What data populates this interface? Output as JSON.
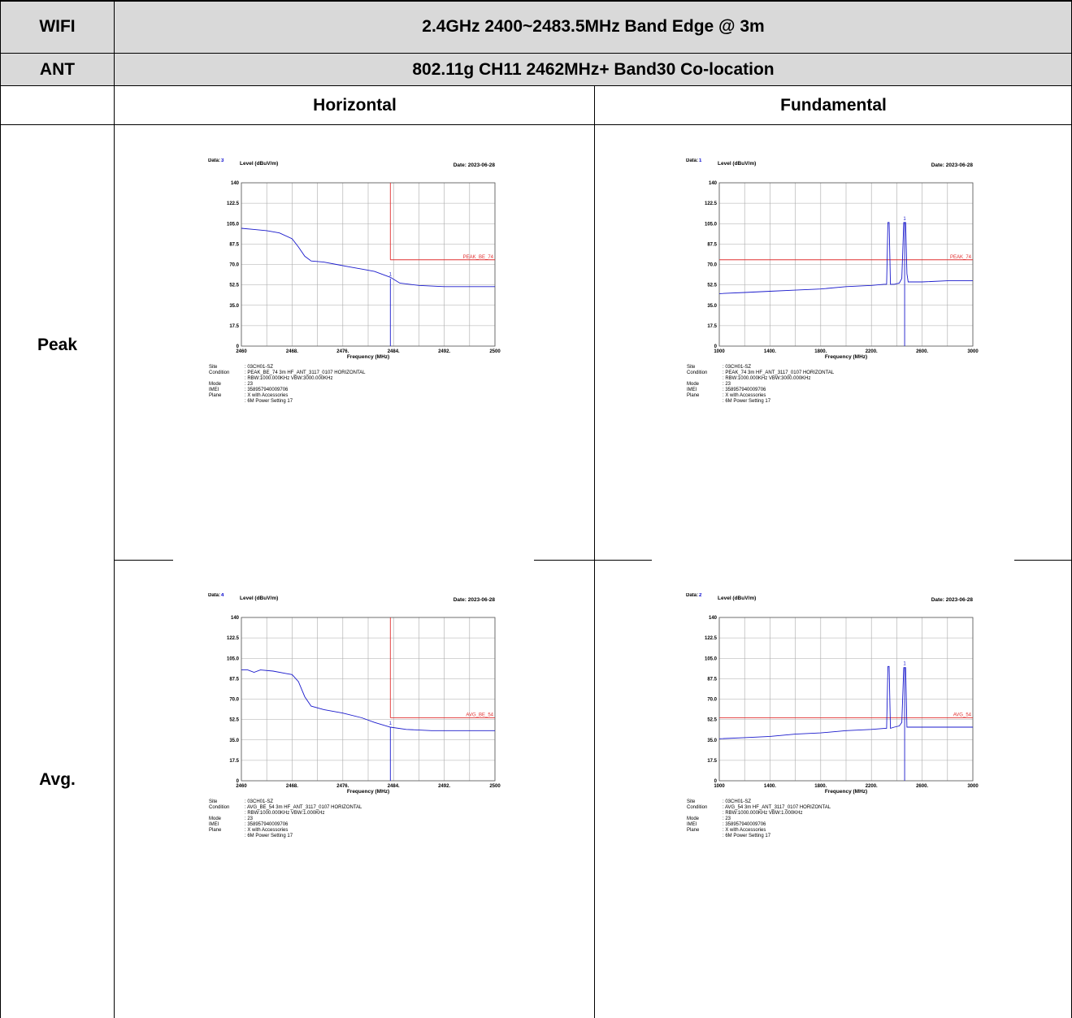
{
  "header": {
    "row1_label": "WIFI",
    "row1_value": "2.4GHz 2400~2483.5MHz Band Edge @ 3m",
    "row2_label": "ANT",
    "row2_value": "802.11g CH11 2462MHz+ Band30 Co-location",
    "col_left": "Horizontal",
    "col_right": "Fundamental"
  },
  "rows": {
    "peak": "Peak",
    "avg": "Avg."
  },
  "meta_labels": [
    "Site",
    "Condition",
    "",
    "Mode",
    "IMEI",
    "Plane",
    ""
  ],
  "plots": {
    "peak_h": {
      "data_label": "Data:",
      "data_num": "3",
      "date": "Date: 2023-06-28",
      "meta_values": [
        ": 03CH01-SZ",
        ": PEAK_BE_74 3m HF_ANT_3117_0107 HORIZONTAL",
        ": RBW:1000.000KHz VBW:3000.000KHz",
        ": 23",
        ": 358957940009706",
        ": X with Accessories",
        ": 6M Power Setting 17"
      ]
    },
    "peak_f": {
      "data_label": "Data:",
      "data_num": "1",
      "date": "Date: 2023-06-28",
      "meta_values": [
        ": 03CH01-SZ",
        ": PEAK_74 3m HF_ANT_3117_0107 HORIZONTAL",
        ": RBW:1000.000KHz VBW:3000.000KHz",
        ": 23",
        ": 358957940009706",
        ": X with Accessories",
        ": 6M Power Setting 17"
      ]
    },
    "avg_h": {
      "data_label": "Data:",
      "data_num": "4",
      "date": "Date: 2023-06-28",
      "meta_values": [
        ": 03CH01-SZ",
        ": AVG_BE_54 3m HF_ANT_3117_0107 HORIZONTAL",
        ": RBW:1000.000KHz VBW:1.000KHz",
        ": 23",
        ": 358957940009706",
        ": X with Accessories",
        ": 6M Power Setting 17"
      ]
    },
    "avg_f": {
      "data_label": "Data:",
      "data_num": "2",
      "date": "Date: 2023-06-28",
      "meta_values": [
        ": 03CH01-SZ",
        ": AVG_54 3m HF_ANT_3117_0107 HORIZONTAL",
        ": RBW:1000.000KHz VBW:1.000KHz",
        ": 23",
        ": 358957940009706",
        ": X with Accessories",
        ": 6M Power Setting 17"
      ]
    }
  },
  "chart_data": [
    {
      "id": "peak_h",
      "type": "line",
      "ylabel": "Level (dBuV/m)",
      "xlabel": "Frequency (MHz)",
      "xlim": [
        2460,
        2500
      ],
      "ylim": [
        0,
        140
      ],
      "xticks": [
        "2460",
        "2468.",
        "2476.",
        "2484.",
        "2492.",
        "2500"
      ],
      "yticks": [
        "0",
        "17.5",
        "35.0",
        "52.5",
        "70.0",
        "87.5",
        "105.0",
        "122.5",
        "140"
      ],
      "limit": {
        "label": "PEAK_BE_74",
        "value": 74,
        "x_start": 2483.5
      },
      "marker": {
        "label": "1",
        "x": 2483.5,
        "y": 58
      },
      "series": [
        {
          "values": [
            [
              2460,
              101
            ],
            [
              2462,
              100
            ],
            [
              2464,
              99
            ],
            [
              2466,
              97
            ],
            [
              2468,
              92
            ],
            [
              2469,
              85
            ],
            [
              2470,
              77
            ],
            [
              2471,
              73
            ],
            [
              2473,
              72
            ],
            [
              2475,
              70
            ],
            [
              2477,
              68
            ],
            [
              2479,
              66
            ],
            [
              2481,
              64
            ],
            [
              2483.5,
              59
            ],
            [
              2485,
              54
            ],
            [
              2488,
              52
            ],
            [
              2492,
              51
            ],
            [
              2496,
              51
            ],
            [
              2500,
              51
            ]
          ]
        }
      ]
    },
    {
      "id": "peak_f",
      "type": "line",
      "ylabel": "Level (dBuV/m)",
      "xlabel": "Frequency (MHz)",
      "xlim": [
        1000,
        3000
      ],
      "ylim": [
        0,
        140
      ],
      "xticks": [
        "1000",
        "1400.",
        "1800.",
        "2200.",
        "2600.",
        "3000"
      ],
      "yticks": [
        "0",
        "17.5",
        "35.0",
        "52.5",
        "70.0",
        "87.5",
        "105.0",
        "122.5",
        "140"
      ],
      "limit": {
        "label": "PEAK_74",
        "value": 74,
        "x_start": 1000
      },
      "marker": {
        "label": "1",
        "x": 2462,
        "y": 106
      },
      "series": [
        {
          "values": [
            [
              1000,
              45
            ],
            [
              1200,
              46
            ],
            [
              1400,
              47
            ],
            [
              1600,
              48
            ],
            [
              1800,
              49
            ],
            [
              2000,
              51
            ],
            [
              2200,
              52
            ],
            [
              2300,
              53
            ],
            [
              2320,
              53
            ],
            [
              2330,
              106
            ],
            [
              2340,
              106
            ],
            [
              2350,
              53
            ],
            [
              2380,
              53
            ],
            [
              2420,
              54
            ],
            [
              2440,
              58
            ],
            [
              2455,
              106
            ],
            [
              2470,
              106
            ],
            [
              2480,
              62
            ],
            [
              2490,
              55
            ],
            [
              2600,
              55
            ],
            [
              2800,
              56
            ],
            [
              3000,
              56
            ]
          ]
        }
      ]
    },
    {
      "id": "avg_h",
      "type": "line",
      "ylabel": "Level (dBuV/m)",
      "xlabel": "Frequency (MHz)",
      "xlim": [
        2460,
        2500
      ],
      "ylim": [
        0,
        140
      ],
      "xticks": [
        "2460",
        "2468.",
        "2476.",
        "2484.",
        "2492.",
        "2500"
      ],
      "yticks": [
        "0",
        "17.5",
        "35.0",
        "52.5",
        "70.0",
        "87.5",
        "105.0",
        "122.5",
        "140"
      ],
      "limit": {
        "label": "AVG_BE_54",
        "value": 54,
        "x_start": 2483.5
      },
      "marker": {
        "label": "1",
        "x": 2483.5,
        "y": 46
      },
      "series": [
        {
          "values": [
            [
              2460,
              95
            ],
            [
              2461,
              95
            ],
            [
              2462,
              93
            ],
            [
              2463,
              95
            ],
            [
              2465,
              94
            ],
            [
              2467,
              92
            ],
            [
              2468,
              91
            ],
            [
              2469,
              85
            ],
            [
              2470,
              72
            ],
            [
              2471,
              64
            ],
            [
              2473,
              61
            ],
            [
              2476,
              58
            ],
            [
              2479,
              54
            ],
            [
              2481,
              50
            ],
            [
              2483.5,
              46
            ],
            [
              2486,
              44
            ],
            [
              2490,
              43
            ],
            [
              2495,
              43
            ],
            [
              2500,
              43
            ]
          ]
        }
      ]
    },
    {
      "id": "avg_f",
      "type": "line",
      "ylabel": "Level (dBuV/m)",
      "xlabel": "Frequency (MHz)",
      "xlim": [
        1000,
        3000
      ],
      "ylim": [
        0,
        140
      ],
      "xticks": [
        "1000",
        "1400.",
        "1800.",
        "2200.",
        "2600.",
        "3000"
      ],
      "yticks": [
        "0",
        "17.5",
        "35.0",
        "52.5",
        "70.0",
        "87.5",
        "105.0",
        "122.5",
        "140"
      ],
      "limit": {
        "label": "AVG_54",
        "value": 54,
        "x_start": 1000
      },
      "marker": {
        "label": "1",
        "x": 2462,
        "y": 97
      },
      "series": [
        {
          "values": [
            [
              1000,
              36
            ],
            [
              1200,
              37
            ],
            [
              1400,
              38
            ],
            [
              1600,
              40
            ],
            [
              1800,
              41
            ],
            [
              2000,
              43
            ],
            [
              2200,
              44
            ],
            [
              2310,
              45
            ],
            [
              2320,
              45
            ],
            [
              2330,
              98
            ],
            [
              2340,
              98
            ],
            [
              2350,
              45
            ],
            [
              2380,
              46
            ],
            [
              2420,
              47
            ],
            [
              2440,
              50
            ],
            [
              2455,
              97
            ],
            [
              2470,
              97
            ],
            [
              2480,
              46
            ],
            [
              2490,
              46
            ],
            [
              2600,
              46
            ],
            [
              2800,
              46
            ],
            [
              3000,
              46
            ]
          ]
        }
      ]
    }
  ]
}
